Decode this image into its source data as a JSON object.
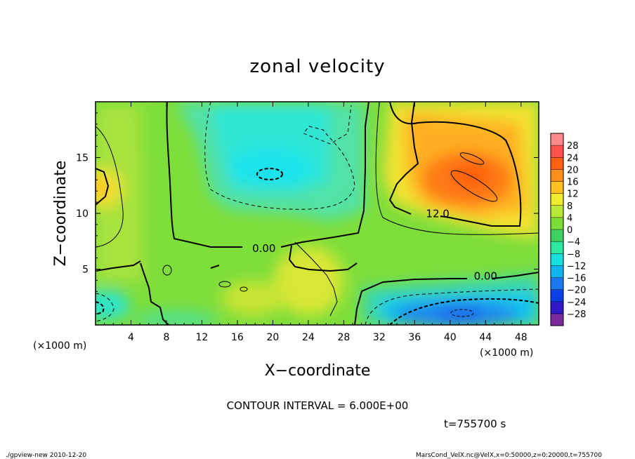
{
  "chart_data": {
    "type": "heatmap",
    "title": "zonal velocity",
    "xlabel": "X−coordinate",
    "ylabel": "Z−coordinate",
    "x_unit_left": "(×1000 m)",
    "x_unit_right": "(×1000 m)",
    "y_unit": "(×1000 m)",
    "xlim": [
      0,
      50
    ],
    "ylim": [
      0,
      20
    ],
    "x_ticks": [
      4,
      8,
      12,
      16,
      20,
      24,
      28,
      32,
      36,
      40,
      44,
      48
    ],
    "y_ticks": [
      5,
      10,
      15
    ],
    "contour_interval_text": "CONTOUR INTERVAL = 6.000E+00",
    "time_text": "t=755700 s",
    "footer_left": "./gpview-new  2010-12-20",
    "footer_right": "MarsCond_VelX.nc@VelX,x=0:50000,z=0:20000,t=755700",
    "contour_labels": [
      {
        "text": "0.00",
        "x": 19.0,
        "z": 6.8
      },
      {
        "text": "12.0",
        "x": 38.6,
        "z": 9.9
      },
      {
        "text": "0.00",
        "x": 44.0,
        "z": 4.3
      }
    ],
    "colorbar": {
      "levels": [
        -32,
        -28,
        -24,
        -20,
        -16,
        -12,
        -8,
        -4,
        0,
        4,
        8,
        12,
        16,
        20,
        24,
        28,
        32
      ],
      "tick_labels": [
        "28",
        "24",
        "20",
        "16",
        "12",
        "8",
        "4",
        "0",
        "−4",
        "−8",
        "−12",
        "−16",
        "−20",
        "−24",
        "−28"
      ],
      "colors": [
        "#7b2a9c",
        "#3018c8",
        "#0a40e8",
        "#1a78f0",
        "#10b4f0",
        "#18e0e0",
        "#2ee8a0",
        "#3ed060",
        "#7cdc38",
        "#b8e838",
        "#f0ec30",
        "#ffc020",
        "#ff9018",
        "#ff6010",
        "#ff5050",
        "#ff8888"
      ]
    },
    "value_range": [
      -28,
      28
    ],
    "field_features": [
      {
        "desc": "positive jet upper right",
        "x": 42,
        "z": 13,
        "peak": 24
      },
      {
        "desc": "negative jet lower right",
        "x": 42,
        "z": 1,
        "peak": -18
      },
      {
        "desc": "negative core upper middle",
        "x": 20,
        "z": 13.5,
        "peak": -9
      },
      {
        "desc": "positive edge left",
        "x": 0,
        "z": 12,
        "peak": 14
      }
    ]
  }
}
